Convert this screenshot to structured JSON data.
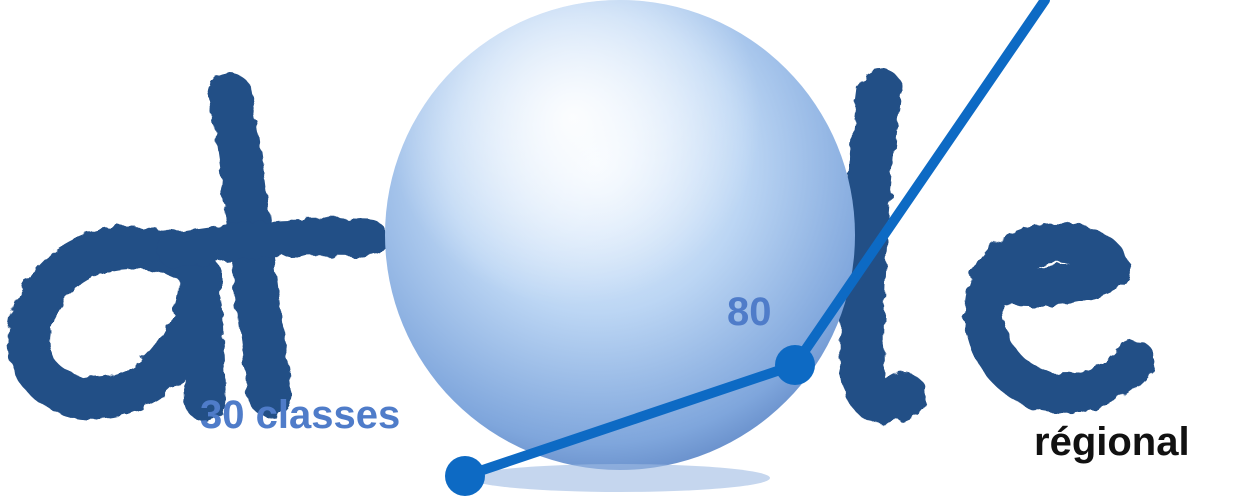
{
  "logo": {
    "wordmark": "atolle",
    "colors": {
      "ink": "#244f86",
      "sphere": "#bcd6f4",
      "line": "#0d6ac4"
    }
  },
  "labels": {
    "first": "30 classes",
    "second": "80",
    "third": "régional"
  },
  "colors": {
    "label_blue": "#4f7cc9",
    "label_dark": "#111111"
  }
}
